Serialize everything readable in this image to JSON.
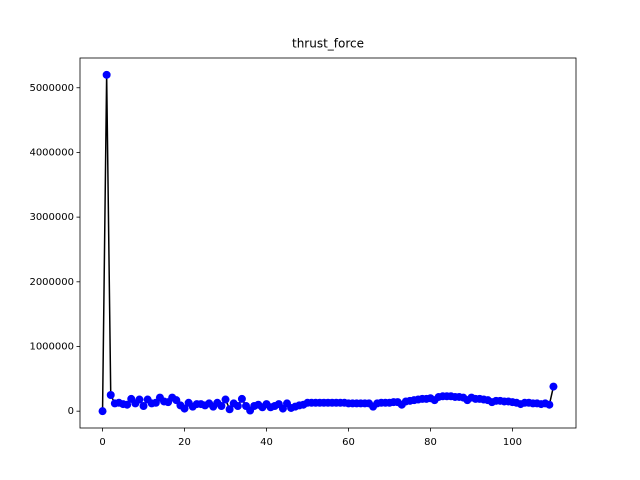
{
  "chart_data": {
    "type": "line",
    "title": "thrust_force",
    "x": [
      0,
      1,
      2,
      3,
      4,
      5,
      6,
      7,
      8,
      9,
      10,
      11,
      12,
      13,
      14,
      15,
      16,
      17,
      18,
      19,
      20,
      21,
      22,
      23,
      24,
      25,
      26,
      27,
      28,
      29,
      30,
      31,
      32,
      33,
      34,
      35,
      36,
      37,
      38,
      39,
      40,
      41,
      42,
      43,
      44,
      45,
      46,
      47,
      48,
      49,
      50,
      51,
      52,
      53,
      54,
      55,
      56,
      57,
      58,
      59,
      60,
      61,
      62,
      63,
      64,
      65,
      66,
      67,
      68,
      69,
      70,
      71,
      72,
      73,
      74,
      75,
      76,
      77,
      78,
      79,
      80,
      81,
      82,
      83,
      84,
      85,
      86,
      87,
      88,
      89,
      90,
      91,
      92,
      93,
      94,
      95,
      96,
      97,
      98,
      99,
      100,
      101,
      102,
      103,
      104,
      105,
      106,
      107,
      108,
      109,
      110
    ],
    "series": [
      {
        "name": "thrust_force",
        "color": "#000000",
        "marker_color": "#0000ff",
        "values": [
          0,
          5200000,
          250000,
          120000,
          130000,
          110000,
          100000,
          190000,
          120000,
          180000,
          80000,
          180000,
          120000,
          130000,
          210000,
          150000,
          140000,
          210000,
          170000,
          90000,
          40000,
          130000,
          70000,
          110000,
          110000,
          90000,
          120000,
          70000,
          130000,
          80000,
          180000,
          30000,
          120000,
          80000,
          190000,
          80000,
          10000,
          80000,
          100000,
          60000,
          110000,
          60000,
          80000,
          110000,
          40000,
          120000,
          50000,
          70000,
          90000,
          100000,
          130000,
          130000,
          130000,
          130000,
          130000,
          130000,
          130000,
          130000,
          130000,
          130000,
          120000,
          120000,
          120000,
          120000,
          120000,
          120000,
          70000,
          120000,
          130000,
          130000,
          130000,
          140000,
          140000,
          100000,
          150000,
          160000,
          170000,
          180000,
          190000,
          190000,
          200000,
          170000,
          220000,
          230000,
          230000,
          230000,
          220000,
          220000,
          210000,
          170000,
          210000,
          190000,
          190000,
          180000,
          170000,
          140000,
          160000,
          160000,
          150000,
          150000,
          140000,
          130000,
          110000,
          130000,
          130000,
          120000,
          120000,
          110000,
          120000,
          100000,
          380000
        ]
      }
    ],
    "xlim": [
      -5.5,
      115.5
    ],
    "xticks": [
      0,
      20,
      40,
      60,
      80,
      100
    ],
    "ylim": [
      -260000,
      5460000
    ],
    "yticks": [
      0,
      1000000,
      2000000,
      3000000,
      4000000,
      5000000
    ]
  }
}
